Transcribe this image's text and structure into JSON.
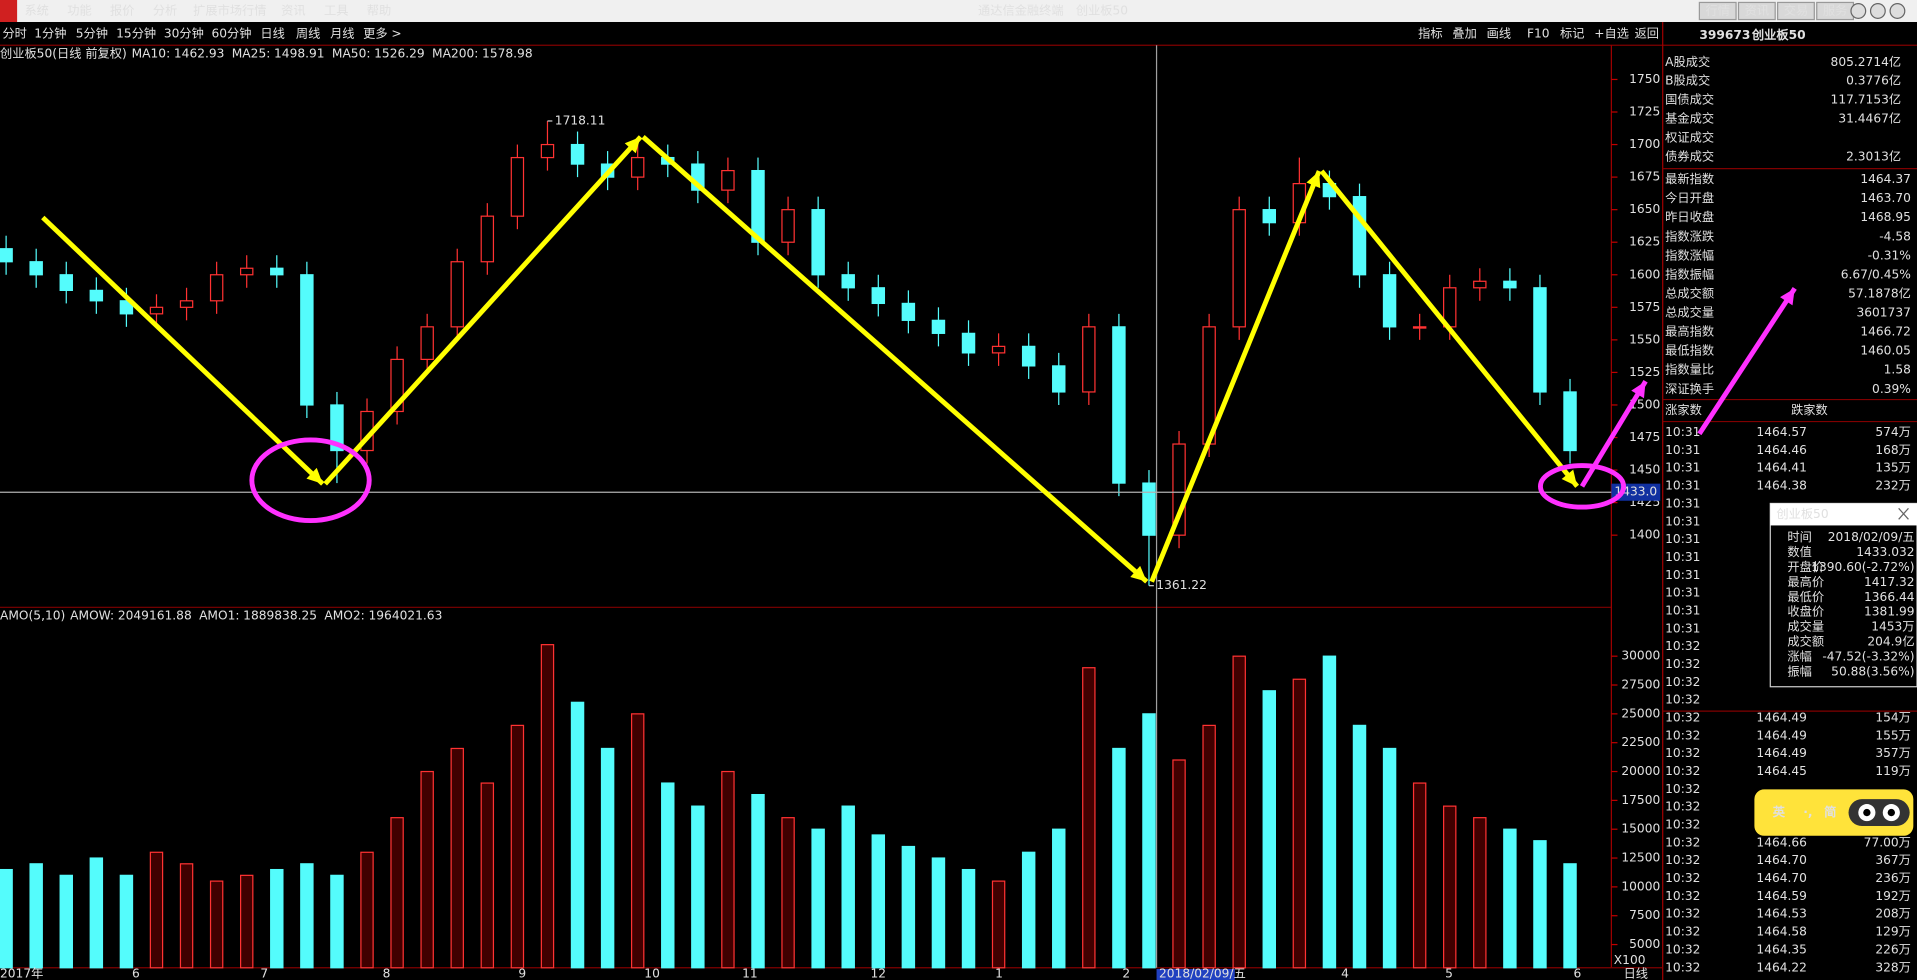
{
  "menu": [
    "系统",
    "功能",
    "报价",
    "分析",
    "扩展市场行情",
    "资讯",
    "工具",
    "帮助"
  ],
  "title_bar": {
    "app": "通达信金融终端",
    "symbol": "创业板50"
  },
  "top_buttons": [
    "行情",
    "资讯",
    "交易",
    "服务"
  ],
  "periods": [
    "分时",
    "1分钟",
    "5分钟",
    "15分钟",
    "30分钟",
    "60分钟",
    "日线",
    "周线",
    "月线",
    "更多 >"
  ],
  "active_period": 6,
  "tools": [
    "指标",
    "叠加",
    "画线",
    "F10",
    "标记",
    "+自选",
    "返回"
  ],
  "chart_data": [
    {
      "type": "candlestick",
      "title": "创业板50(日线 前复权)",
      "indicators": [
        {
          "name": "MA10:",
          "value": 1462.93,
          "color": "#ffffff"
        },
        {
          "name": "MA25:",
          "value": 1498.91,
          "color": "#ffff00"
        },
        {
          "name": "MA50:",
          "value": 1526.29,
          "color": "#ff00ff"
        },
        {
          "name": "MA200:",
          "value": 1578.98,
          "color": "#00e000"
        }
      ],
      "open": [
        1620,
        1610,
        1600,
        1588,
        1580,
        1570,
        1575,
        1580,
        1600,
        1605,
        1600,
        1500,
        1465,
        1495,
        1535,
        1560,
        1610,
        1645,
        1690,
        1700,
        1685,
        1675,
        1690,
        1685,
        1665,
        1680,
        1625,
        1650,
        1600,
        1590,
        1578,
        1565,
        1555,
        1540,
        1545,
        1530,
        1510,
        1560,
        1440,
        1400,
        1470,
        1560,
        1650,
        1640,
        1670,
        1660,
        1600,
        1560,
        1560,
        1590,
        1595,
        1590,
        1510
      ],
      "high": [
        1630,
        1620,
        1610,
        1598,
        1590,
        1585,
        1590,
        1610,
        1615,
        1615,
        1610,
        1510,
        1505,
        1545,
        1570,
        1620,
        1655,
        1700,
        1718.11,
        1710,
        1695,
        1700,
        1700,
        1695,
        1690,
        1690,
        1660,
        1660,
        1610,
        1600,
        1588,
        1575,
        1565,
        1555,
        1555,
        1540,
        1570,
        1570,
        1450,
        1480,
        1570,
        1660,
        1660,
        1690,
        1680,
        1670,
        1610,
        1570,
        1600,
        1605,
        1605,
        1600,
        1520
      ],
      "low": [
        1600,
        1590,
        1578,
        1570,
        1560,
        1560,
        1565,
        1570,
        1590,
        1590,
        1490,
        1440,
        1455,
        1485,
        1525,
        1550,
        1600,
        1635,
        1680,
        1675,
        1665,
        1665,
        1675,
        1655,
        1655,
        1615,
        1615,
        1590,
        1580,
        1568,
        1555,
        1545,
        1530,
        1530,
        1520,
        1500,
        1500,
        1430,
        1361.22,
        1390,
        1460,
        1550,
        1630,
        1630,
        1650,
        1590,
        1550,
        1550,
        1550,
        1580,
        1580,
        1500,
        1455
      ],
      "close": [
        1610,
        1600,
        1588,
        1580,
        1570,
        1575,
        1580,
        1600,
        1605,
        1600,
        1500,
        1465,
        1495,
        1535,
        1560,
        1610,
        1645,
        1690,
        1700,
        1685,
        1675,
        1690,
        1685,
        1665,
        1680,
        1625,
        1650,
        1600,
        1590,
        1578,
        1565,
        1555,
        1540,
        1545,
        1530,
        1510,
        1560,
        1440,
        1400,
        1470,
        1560,
        1650,
        1640,
        1670,
        1660,
        1600,
        1560,
        1560,
        1590,
        1595,
        1590,
        1510,
        1465
      ],
      "up_color": "#ff3232",
      "down_color": "#54fcfc",
      "ylim": [
        1344.6,
        1776.3
      ],
      "yticks": [
        1400,
        1425,
        1450,
        1475,
        1500,
        1525,
        1550,
        1575,
        1600,
        1625,
        1650,
        1675,
        1700,
        1725,
        1750
      ],
      "crosshair": {
        "value": 1433,
        "label": "1433.0"
      }
    },
    {
      "type": "bar",
      "title": "AMO(5,10)",
      "indicators": [
        {
          "name": "AMOW:",
          "value": 2049161.88,
          "color": "#ffffff"
        },
        {
          "name": "AMO1:",
          "value": 1889838.25,
          "color": "#ffffff"
        },
        {
          "name": "AMO2:",
          "value": 1964021.63,
          "color": "#ffff00"
        }
      ],
      "values": [
        11500,
        12000,
        11000,
        12500,
        11000,
        13000,
        12000,
        10500,
        11000,
        11500,
        12000,
        11000,
        13000,
        16000,
        20000,
        22000,
        19000,
        24000,
        31000,
        26000,
        22000,
        25000,
        19000,
        17000,
        20000,
        18000,
        16000,
        15000,
        17000,
        14500,
        13500,
        12500,
        11500,
        10500,
        13000,
        15000,
        29000,
        22000,
        25000,
        21000,
        24000,
        30000,
        27000,
        28000,
        30000,
        24000,
        22000,
        19000,
        17000,
        16000,
        15000,
        14000,
        12000
      ],
      "ylim": [
        2987,
        34237
      ],
      "yticks": [
        5000,
        7500,
        10000,
        12500,
        15000,
        17500,
        20000,
        22500,
        25000,
        27500,
        30000
      ],
      "unit": "X100",
      "x_labels": [
        "2017年",
        "6",
        "7",
        "8",
        "9",
        "10",
        "11",
        "12",
        "1",
        "2",
        "2018/02/09/五",
        "4",
        "5",
        "6"
      ],
      "period": "日线"
    }
  ],
  "quote": {
    "code": "399673",
    "name": "创业板50",
    "turnover": [
      [
        "A股成交",
        "805.2714亿"
      ],
      [
        "B股成交",
        "0.3776亿"
      ],
      [
        "国债成交",
        "117.7153亿"
      ],
      [
        "基金成交",
        "31.4467亿"
      ],
      [
        "权证成交"
      ],
      [
        "债券成交",
        "2.3013亿"
      ]
    ],
    "stats": [
      [
        "最新指数",
        "1464.37"
      ],
      [
        "今日开盘",
        "1463.70"
      ],
      [
        "昨日收盘",
        "1468.95"
      ],
      [
        "指数涨跌",
        "-4.58"
      ],
      [
        "指数涨幅",
        "-0.31%"
      ],
      [
        "指数振幅",
        "6.67/0.45%"
      ],
      [
        "总成交额",
        "57.1878亿"
      ],
      [
        "总成交量",
        "3601737"
      ],
      [
        "最高指数",
        "1466.72"
      ],
      [
        "最低指数",
        "1460.05"
      ],
      [
        "指数量比",
        "1.58"
      ],
      [
        "深证换手",
        "0.39%"
      ]
    ],
    "breadth": [
      "涨家数",
      "跌家数"
    ],
    "ticks": [
      [
        "10:31",
        "1464.57",
        "574万"
      ],
      [
        "10:31",
        "1464.46",
        "168万"
      ],
      [
        "10:31",
        "1464.41",
        "135万"
      ],
      [
        "10:31",
        "1464.38",
        "232万"
      ],
      [
        "10:31"
      ],
      [
        "10:31"
      ],
      [
        "10:31"
      ],
      [
        "10:31"
      ],
      [
        "10:31"
      ],
      [
        "10:31"
      ],
      [
        "10:31"
      ],
      [
        "10:31"
      ],
      [
        "10:32"
      ],
      [
        "10:32"
      ],
      [
        "10:32"
      ],
      [
        "10:32"
      ],
      [
        "10:32",
        "1464.49",
        "154万"
      ],
      [
        "10:32",
        "1464.49",
        "155万"
      ],
      [
        "10:32",
        "1464.49",
        "357万"
      ],
      [
        "10:32",
        "1464.45",
        "119万"
      ],
      [
        "10:32"
      ],
      [
        "10:32"
      ],
      [
        "10:32"
      ],
      [
        "10:32",
        "1464.66",
        "77.00万"
      ],
      [
        "10:32",
        "1464.70",
        "367万"
      ],
      [
        "10:32",
        "1464.70",
        "236万"
      ],
      [
        "10:32",
        "1464.59",
        "192万"
      ],
      [
        "10:32",
        "1464.53",
        "208万"
      ],
      [
        "10:32",
        "1464.58",
        "129万"
      ],
      [
        "10:32",
        "1464.35",
        "226万"
      ],
      [
        "10:32",
        "1464.22",
        "328万"
      ]
    ]
  },
  "popup": {
    "title": "创业板50",
    "rows": [
      [
        "时间",
        "2018/02/09/五"
      ],
      [
        "数值",
        "1433.032"
      ],
      [
        "开盘价",
        "1390.60(-2.72%)"
      ],
      [
        "最高价",
        "1417.32"
      ],
      [
        "最低价",
        "1366.44"
      ],
      [
        "收盘价",
        "1381.99"
      ],
      [
        "成交量",
        "1453万"
      ],
      [
        "成交额",
        "204.9亿"
      ],
      [
        "涨幅",
        "-47.52(-3.32%)"
      ],
      [
        "振幅",
        "50.88(3.56%)"
      ]
    ]
  },
  "ime_widget": [
    "英",
    "·,",
    "简"
  ]
}
